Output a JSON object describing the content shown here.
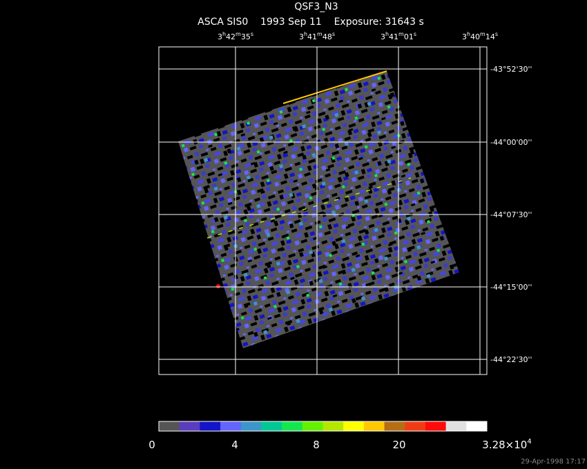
{
  "header": {
    "title": "QSF3_N3",
    "subtitle": "ASCA SIS0    1993 Sep 11    Exposure: 31643 s"
  },
  "ra_labels": [
    [
      "3",
      "h",
      "42",
      "m",
      "35",
      "s"
    ],
    [
      "3",
      "h",
      "41",
      "m",
      "48",
      "s"
    ],
    [
      "3",
      "h",
      "41",
      "m",
      "01",
      "s"
    ],
    [
      "3",
      "h",
      "40",
      "m",
      "14",
      "s"
    ]
  ],
  "dec_labels": [
    "-43°52'30''",
    "-44°00'00''",
    "-44°07'30''",
    "-44°15'00''",
    "-44°22'30''"
  ],
  "colorbar": {
    "colors": [
      "#555555",
      "#5a3cbe",
      "#1414c8",
      "#6464ff",
      "#3c96c8",
      "#00c896",
      "#14e650",
      "#64f000",
      "#b4e600",
      "#ffff00",
      "#ffc800",
      "#b46e14",
      "#f03c14",
      "#ff0a0a",
      "#e1e1e1",
      "#ffffff"
    ],
    "labels": [
      [
        "0"
      ],
      [
        "4"
      ],
      [
        "8"
      ],
      [
        "20"
      ],
      [
        "3.28×10",
        "4"
      ]
    ]
  },
  "timestamp": "29-Apr-1998 17:17"
}
